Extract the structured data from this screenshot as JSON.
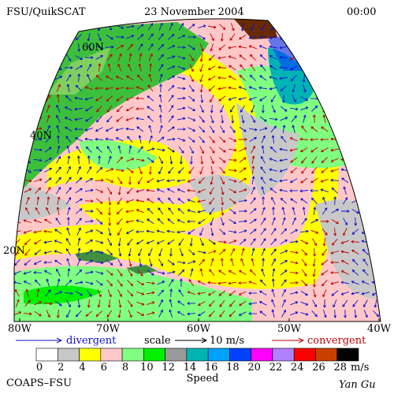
{
  "header": {
    "title": "FSU/QuikSCAT",
    "date": "23 November 2004",
    "time": "00:00"
  },
  "map": {
    "lat_labels": [
      "60N",
      "40N",
      "20N"
    ],
    "lon_labels": [
      "80W",
      "70W",
      "60W",
      "50W",
      "40W"
    ]
  },
  "legend": {
    "divergent": "divergent",
    "scale": "scale",
    "scale_value": "10 m/s",
    "convergent": "convergent",
    "speed_ticks": [
      0,
      2,
      4,
      6,
      8,
      10,
      12,
      14,
      16,
      18,
      20,
      22,
      24,
      26,
      28
    ],
    "speed_colors": [
      "#ffffff",
      "#c8c8c8",
      "#ffff00",
      "#ffc8c8",
      "#80ff80",
      "#00f000",
      "#9a9a9a",
      "#00b4b4",
      "#00a0ff",
      "#0040ff",
      "#ff00ff",
      "#b080ff",
      "#ff0000",
      "#c84000",
      "#000000"
    ],
    "unit": "m/s",
    "speed_title": "Speed"
  },
  "footer": {
    "credit": "COAPS–FSU",
    "author": "Yan Gu"
  }
}
